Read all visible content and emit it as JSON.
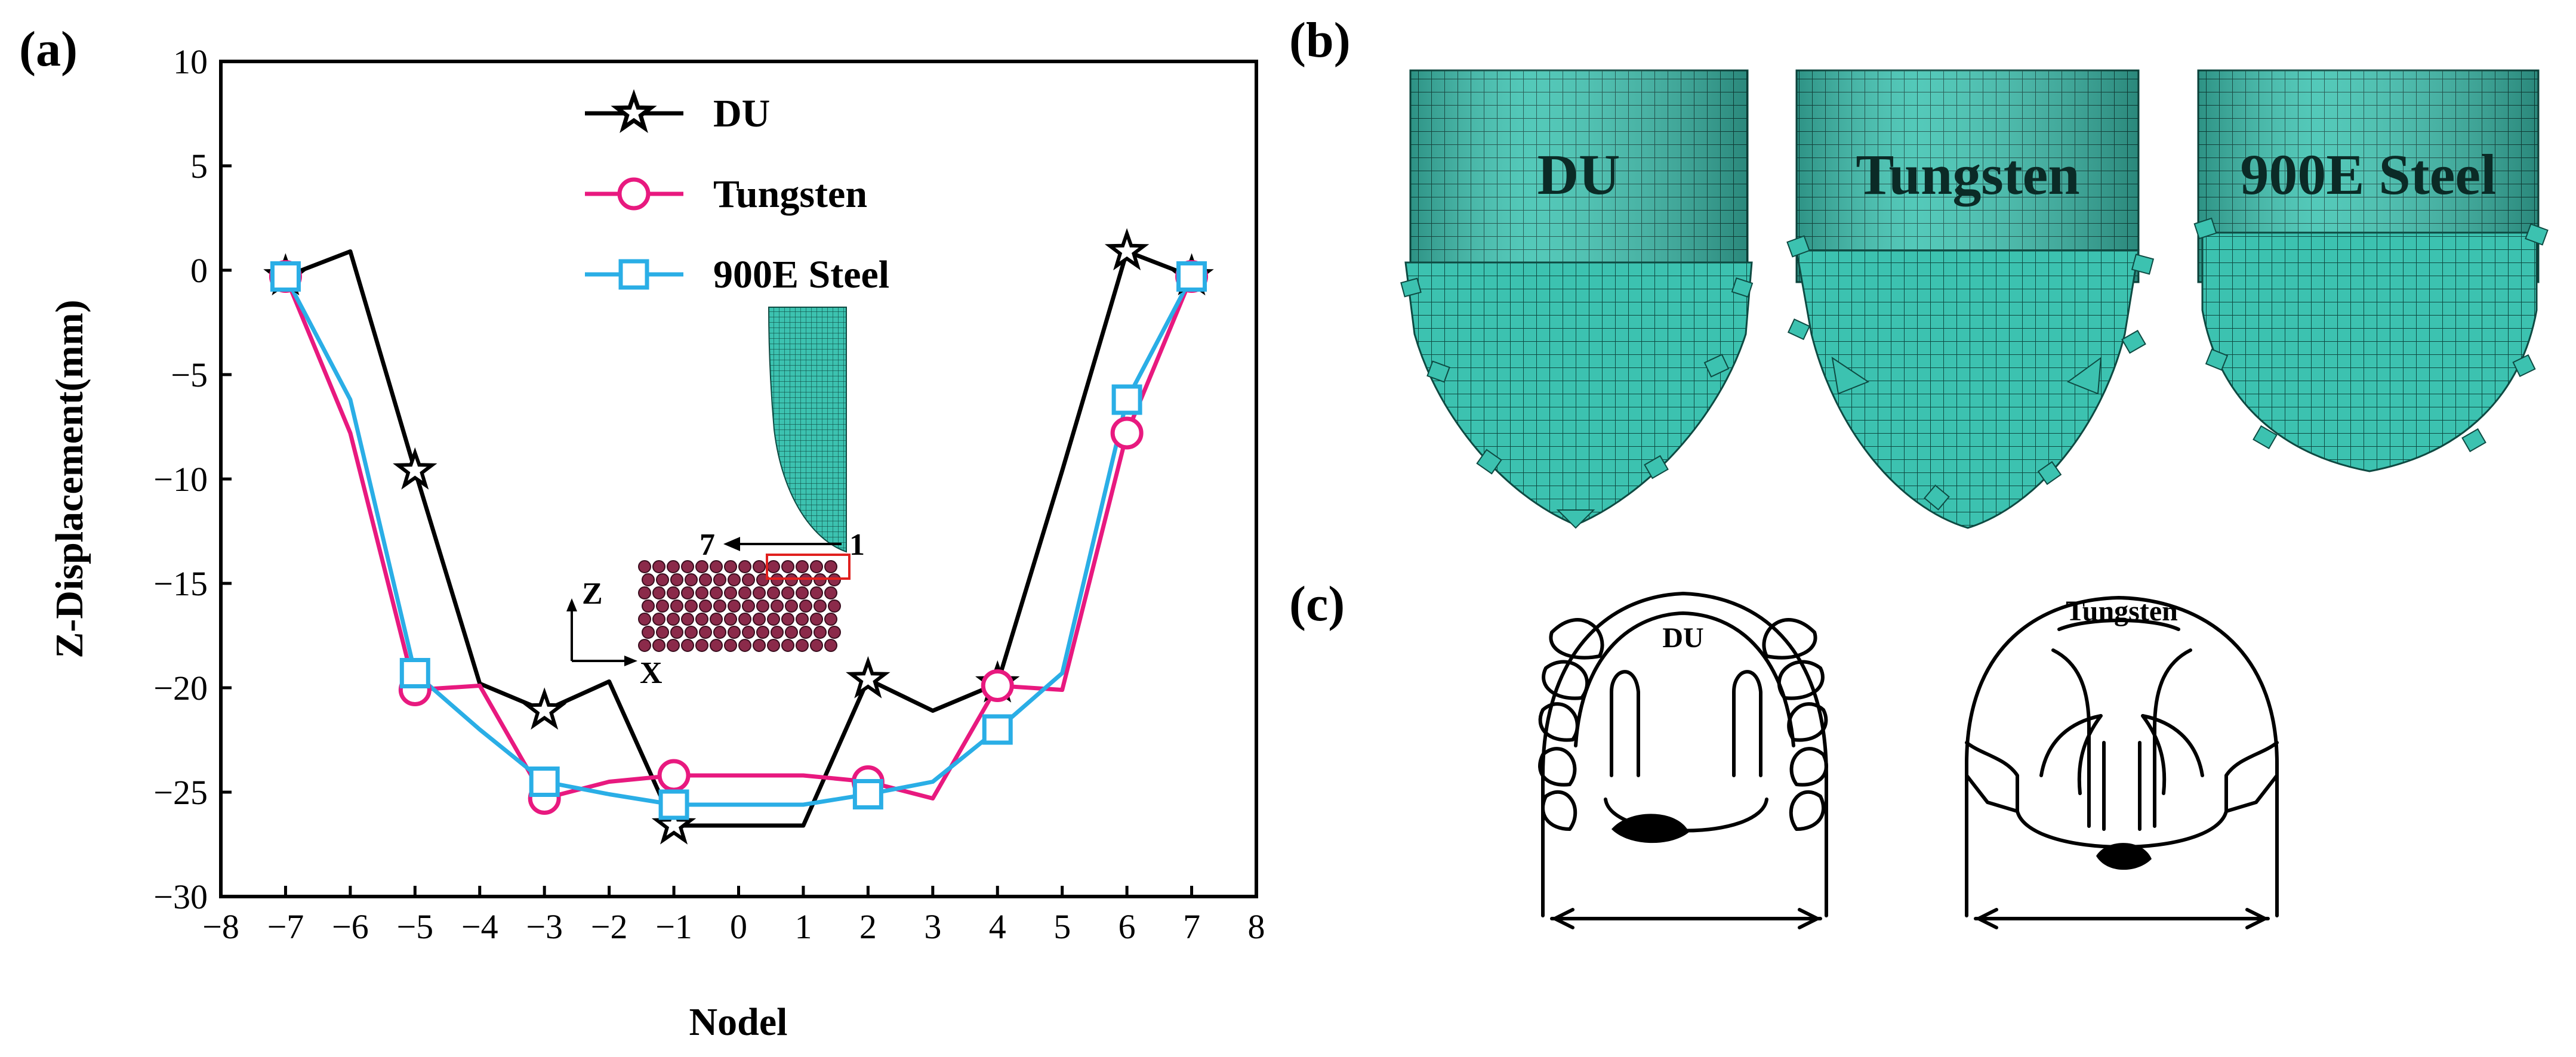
{
  "panels": {
    "a": "(a)",
    "b": "(b)",
    "c": "(c)"
  },
  "chart_data": {
    "type": "line",
    "xlabel": "Nodel",
    "ylabel": "Z-Displacement(mm)",
    "xlim": [
      -8,
      8
    ],
    "ylim": [
      -30,
      10
    ],
    "xticks": [
      -8,
      -7,
      -6,
      -5,
      -4,
      -3,
      -2,
      -1,
      0,
      1,
      2,
      3,
      4,
      5,
      6,
      7,
      8
    ],
    "yticks": [
      10,
      5,
      0,
      -5,
      -10,
      -15,
      -20,
      -25,
      -30
    ],
    "legend_position": "top-center",
    "series": [
      {
        "name": "DU",
        "color": "#000000",
        "marker": "star",
        "x": [
          -7,
          -6,
          -5,
          -4,
          -3,
          -2,
          -1,
          1,
          2,
          3,
          4,
          5,
          6,
          7
        ],
        "y": [
          -0.3,
          0.9,
          -9.6,
          -19.8,
          -21.1,
          -19.7,
          -26.6,
          -26.6,
          -19.6,
          -21.1,
          -19.8,
          -9.6,
          0.9,
          -0.3
        ],
        "marker_x": [
          -7,
          -5,
          -3,
          -1,
          2,
          4,
          6,
          7
        ]
      },
      {
        "name": "Tungsten",
        "color": "#e8197f",
        "marker": "circle",
        "x": [
          -7,
          -6,
          -5,
          -4,
          -3,
          -2,
          -1,
          1,
          2,
          3,
          4,
          5,
          6,
          7
        ],
        "y": [
          -0.3,
          -7.8,
          -20.1,
          -19.9,
          -25.3,
          -24.5,
          -24.2,
          -24.2,
          -24.5,
          -25.3,
          -19.9,
          -20.1,
          -7.8,
          -0.3
        ],
        "marker_x": [
          -7,
          -5,
          -3,
          -1,
          2,
          4,
          6,
          7
        ]
      },
      {
        "name": "900E Steel",
        "color": "#2aaee6",
        "marker": "square",
        "x": [
          -7,
          -6,
          -5,
          -4,
          -3,
          -2,
          -1,
          1,
          2,
          3,
          4,
          5,
          6,
          7
        ],
        "y": [
          -0.3,
          -6.2,
          -19.3,
          -22.0,
          -24.5,
          -25.1,
          -25.6,
          -25.6,
          -25.1,
          -24.5,
          -22.0,
          -19.3,
          -6.2,
          -0.3
        ],
        "marker_x": [
          -7,
          -5,
          -3,
          -1,
          2,
          4,
          6,
          7
        ]
      }
    ]
  },
  "inset": {
    "axis_z": "Z",
    "axis_x": "X",
    "node_start": "7",
    "node_end": "1"
  },
  "mesh_labels": [
    "DU",
    "Tungsten",
    "900E Steel"
  ],
  "sketch_labels": [
    "DU",
    "Tungsten"
  ],
  "colors": {
    "mesh": "#3cc2b0",
    "mesh_line": "#0e4a42",
    "target_ball": "#8b2a4a"
  }
}
